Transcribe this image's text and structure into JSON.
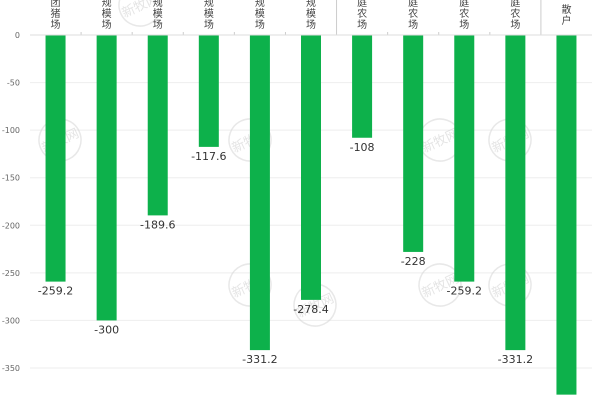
{
  "chart_data": {
    "type": "bar",
    "categories": [
      [
        "团",
        "猪",
        "场"
      ],
      [
        "规",
        "模",
        "场"
      ],
      [
        "规",
        "模",
        "场"
      ],
      [
        "规",
        "模",
        "场"
      ],
      [
        "规",
        "模",
        "场"
      ],
      [
        "规",
        "模",
        "场"
      ],
      [
        "庭",
        "农",
        "场"
      ],
      [
        "庭",
        "农",
        "场"
      ],
      [
        "庭",
        "农",
        "场"
      ],
      [
        "庭",
        "农",
        "场"
      ],
      [
        "散",
        "户"
      ]
    ],
    "values": [
      -259.2,
      -300,
      -189.6,
      -117.6,
      -331.2,
      -278.4,
      -108,
      -228,
      -259.2,
      -331.2,
      -378
    ],
    "data_labels": [
      "-259.2",
      "-300",
      "-189.6",
      "-117.6",
      "-331.2",
      "-278.4",
      "-108",
      "-228",
      "-259.2",
      "-331.2",
      ""
    ],
    "yticks": [
      0,
      -50,
      -100,
      -150,
      -200,
      -250,
      -300,
      -350
    ],
    "ylim": [
      -380,
      0
    ],
    "grid": true,
    "colors": {
      "bar": "#0db14b",
      "grid": "#eeeeee",
      "axis": "#999999"
    },
    "watermark_text": "新牧网"
  }
}
